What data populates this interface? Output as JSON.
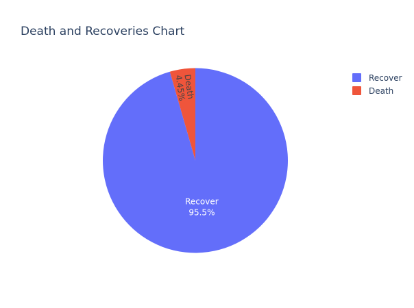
{
  "chart_data": {
    "type": "pie",
    "title": "Death and Recoveries Chart",
    "categories": [
      "Recover",
      "Death"
    ],
    "values": [
      95.5,
      4.45
    ],
    "percent_labels": [
      "95.5%",
      "4.45%"
    ],
    "colors": [
      "#636efa",
      "#ef553b"
    ],
    "label_colors": [
      "#ffffff",
      "#444444"
    ],
    "legend": {
      "placement": "top-right",
      "items": [
        {
          "label": "Recover",
          "color": "#636efa"
        },
        {
          "label": "Death",
          "color": "#ef553b"
        }
      ]
    }
  }
}
